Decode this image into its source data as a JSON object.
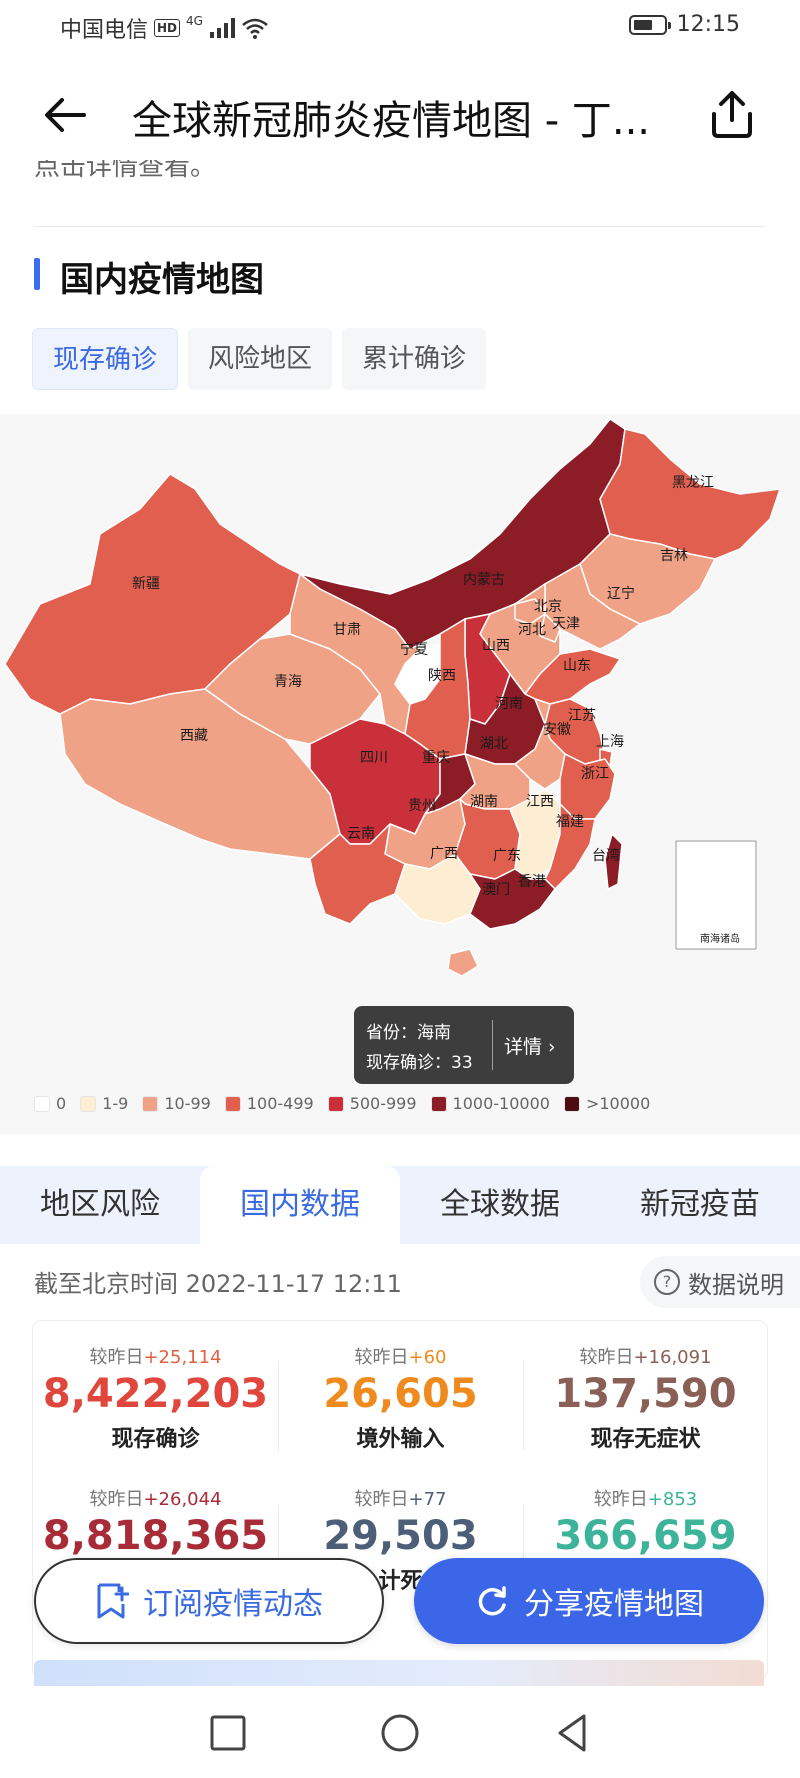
{
  "status_bar": {
    "carrier": "中国电信",
    "hd": "HD",
    "network": "4G",
    "time": "12:15"
  },
  "header": {
    "title": "全球新冠肺炎疫情地图 - 丁..."
  },
  "cutoff_text": "点击详情查看。",
  "map_section": {
    "title": "国内疫情地图",
    "tabs": [
      "现存确诊",
      "风险地区",
      "累计确诊"
    ],
    "active_tab": 0,
    "provinces": {
      "xinjiang": "新疆",
      "xizang": "西藏",
      "qinghai": "青海",
      "gansu": "甘肃",
      "neimenggu": "内蒙古",
      "heilongjiang": "黑龙江",
      "jilin": "吉林",
      "liaoning": "辽宁",
      "beijing": "北京",
      "tianjin": "天津",
      "hebei": "河北",
      "shanxi": "山西",
      "ningxia": "宁夏",
      "shaanxi": "陕西",
      "shandong": "山东",
      "henan": "河南",
      "jiangsu": "江苏",
      "anhui": "安徽",
      "shanghai": "上海",
      "sichuan": "四川",
      "chongqing": "重庆",
      "hubei": "湖北",
      "zhejiang": "浙江",
      "guizhou": "贵州",
      "hunan": "湖南",
      "jiangxi": "江西",
      "fujian": "福建",
      "yunnan": "云南",
      "guangxi": "广西",
      "guangdong": "广东",
      "taiwan": "台湾",
      "xianggang": "香港",
      "aomen": "澳门",
      "hainan": "海南",
      "nanhai": "南海诸岛"
    },
    "tooltip": {
      "province_line": "省份：海南",
      "value_line": "现存确诊：33",
      "detail": "详情 ›"
    },
    "legend": [
      {
        "label": "0",
        "color": "#ffffff"
      },
      {
        "label": "1-9",
        "color": "#fdedd3"
      },
      {
        "label": "10-99",
        "color": "#f0a287"
      },
      {
        "label": "100-499",
        "color": "#e05f4f"
      },
      {
        "label": "500-999",
        "color": "#c9303a"
      },
      {
        "label": "1000-10000",
        "color": "#8c1c26"
      },
      {
        "label": ">10000",
        "color": "#4d0c12"
      }
    ]
  },
  "data_tabs": [
    "地区风险",
    "国内数据",
    "全球数据",
    "新冠疫苗"
  ],
  "active_data_tab": 1,
  "update_time": "截至北京时间 2022-11-17 12:11",
  "data_note": "数据说明",
  "stats": [
    {
      "delta_prefix": "较昨日",
      "delta": "+25,114",
      "delta_color": "#e0603f",
      "value": "8,422,203",
      "value_color": "#e0463c",
      "label": "现存确诊"
    },
    {
      "delta_prefix": "较昨日",
      "delta": "+60",
      "delta_color": "#ef8a1f",
      "value": "26,605",
      "value_color": "#ef8a1f",
      "label": "境外输入"
    },
    {
      "delta_prefix": "较昨日",
      "delta": "+16,091",
      "delta_color": "#8a5f55",
      "value": "137,590",
      "value_color": "#8a5f55",
      "label": "现存无症状"
    },
    {
      "delta_prefix": "较昨日",
      "delta": "+26,044",
      "delta_color": "#a82c38",
      "value": "8,818,365",
      "value_color": "#a82c38",
      "label": ""
    },
    {
      "delta_prefix": "较昨日",
      "delta": "+77",
      "delta_color": "#4d5e78",
      "value": "29,503",
      "value_color": "#4d5e78",
      "label": "计死"
    },
    {
      "delta_prefix": "较昨日",
      "delta": "+853",
      "delta_color": "#3db49a",
      "value": "366,659",
      "value_color": "#3db49a",
      "label": ""
    }
  ],
  "buttons": {
    "subscribe": "订阅疫情动态",
    "share": "分享疫情地图"
  }
}
